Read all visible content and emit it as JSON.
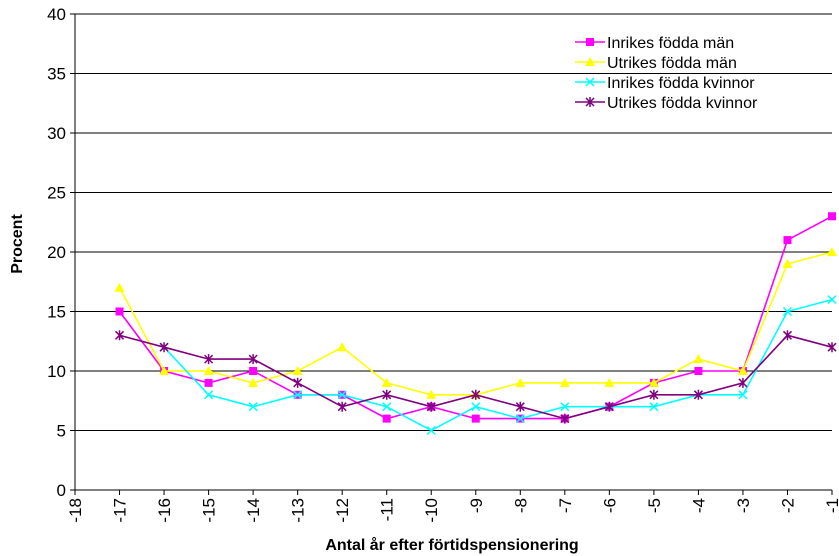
{
  "chart_data": {
    "type": "line",
    "title": "",
    "xlabel": "Antal år efter förtidspensionering",
    "ylabel": "Procent",
    "x": [
      -18,
      -17,
      -16,
      -15,
      -14,
      -13,
      -12,
      -11,
      -10,
      -9,
      -8,
      -7,
      -6,
      -5,
      -4,
      -3,
      -2,
      -1
    ],
    "xlim": [
      -18,
      -1
    ],
    "ylim": [
      0,
      40
    ],
    "yticks": [
      0,
      5,
      10,
      15,
      20,
      25,
      30,
      35,
      40
    ],
    "grid": "horizontal",
    "legend_position": "top-right",
    "series": [
      {
        "name": "Inrikes födda män",
        "color": "#FF00FF",
        "marker": "square",
        "values": [
          null,
          15,
          10,
          9,
          10,
          8,
          8,
          6,
          7,
          6,
          6,
          6,
          7,
          9,
          10,
          10,
          21,
          23
        ]
      },
      {
        "name": "Utrikes födda män",
        "color": "#FFFF00",
        "marker": "triangle",
        "values": [
          null,
          17,
          10,
          10,
          9,
          10,
          12,
          9,
          8,
          8,
          9,
          9,
          9,
          9,
          11,
          10,
          19,
          20
        ]
      },
      {
        "name": "Inrikes födda kvinnor",
        "color": "#00FFFF",
        "marker": "x",
        "values": [
          null,
          null,
          12,
          8,
          7,
          8,
          8,
          7,
          5,
          7,
          6,
          7,
          7,
          7,
          8,
          8,
          15,
          16
        ]
      },
      {
        "name": "Utrikes födda kvinnor",
        "color": "#800080",
        "marker": "star",
        "values": [
          null,
          13,
          12,
          11,
          11,
          9,
          7,
          8,
          7,
          8,
          7,
          6,
          7,
          8,
          8,
          9,
          13,
          12
        ]
      }
    ]
  }
}
